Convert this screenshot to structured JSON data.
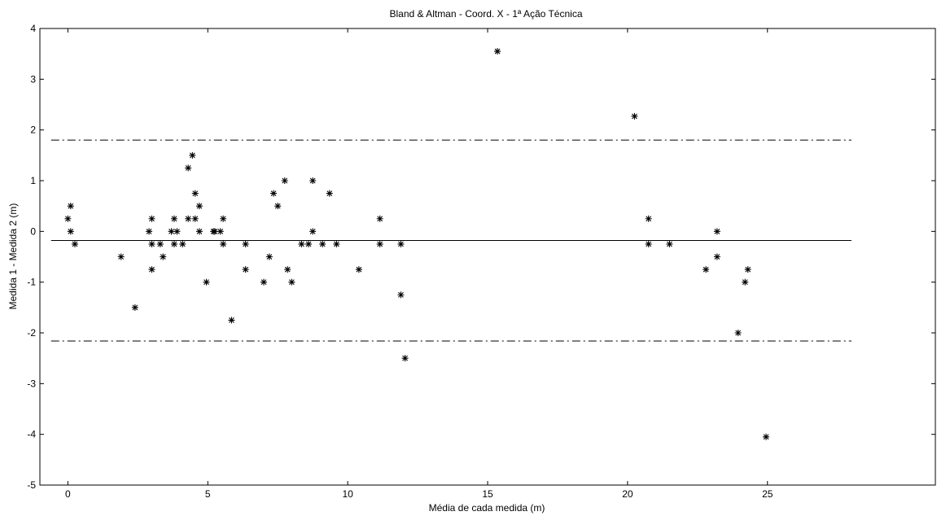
{
  "chart_data": {
    "type": "scatter",
    "title": "Bland & Altman - Coord. X - 1ª Ação Técnica",
    "xlabel": "Média de cada medida (m)",
    "ylabel": "Medida 1 - Medida 2 (m)",
    "xlim": [
      -1,
      31
    ],
    "ylim": [
      -5,
      4
    ],
    "x_ticks": [
      0,
      5,
      10,
      15,
      20,
      25
    ],
    "y_ticks": [
      -5,
      -4,
      -3,
      -2,
      -1,
      0,
      1,
      2,
      3,
      4
    ],
    "grid": false,
    "marker": "asterisk",
    "color": "#000000",
    "reference_lines": [
      {
        "y": -0.18,
        "style": "solid"
      },
      {
        "y": 1.8,
        "style": "dash-dot"
      },
      {
        "y": -2.16,
        "style": "dash-dot"
      }
    ],
    "reference_line_x_range": [
      -0.6,
      28
    ],
    "points": [
      {
        "x": 0.0,
        "y": 0.25
      },
      {
        "x": 0.1,
        "y": 0.5
      },
      {
        "x": 0.1,
        "y": 0.0
      },
      {
        "x": 0.25,
        "y": -0.25
      },
      {
        "x": 1.9,
        "y": -0.5
      },
      {
        "x": 2.4,
        "y": -1.5
      },
      {
        "x": 2.9,
        "y": 0.0
      },
      {
        "x": 3.0,
        "y": 0.25
      },
      {
        "x": 3.0,
        "y": -0.25
      },
      {
        "x": 3.0,
        "y": -0.75
      },
      {
        "x": 3.3,
        "y": -0.25
      },
      {
        "x": 3.4,
        "y": -0.5
      },
      {
        "x": 3.7,
        "y": 0.0
      },
      {
        "x": 3.8,
        "y": 0.25
      },
      {
        "x": 3.8,
        "y": -0.25
      },
      {
        "x": 3.9,
        "y": 0.0
      },
      {
        "x": 4.1,
        "y": -0.25
      },
      {
        "x": 4.3,
        "y": 1.25
      },
      {
        "x": 4.3,
        "y": 0.25
      },
      {
        "x": 4.45,
        "y": 1.5
      },
      {
        "x": 4.55,
        "y": 0.75
      },
      {
        "x": 4.55,
        "y": 0.25
      },
      {
        "x": 4.7,
        "y": 0.5
      },
      {
        "x": 4.7,
        "y": 0.0
      },
      {
        "x": 4.95,
        "y": -1.0
      },
      {
        "x": 5.2,
        "y": 0.0
      },
      {
        "x": 5.25,
        "y": 0.0
      },
      {
        "x": 5.45,
        "y": 0.0
      },
      {
        "x": 5.55,
        "y": 0.25
      },
      {
        "x": 5.55,
        "y": -0.25
      },
      {
        "x": 5.85,
        "y": -1.75
      },
      {
        "x": 6.35,
        "y": -0.25
      },
      {
        "x": 6.35,
        "y": -0.75
      },
      {
        "x": 7.0,
        "y": -1.0
      },
      {
        "x": 7.2,
        "y": -0.5
      },
      {
        "x": 7.35,
        "y": 0.75
      },
      {
        "x": 7.5,
        "y": 0.5
      },
      {
        "x": 7.75,
        "y": 1.0
      },
      {
        "x": 7.85,
        "y": -0.75
      },
      {
        "x": 8.0,
        "y": -1.0
      },
      {
        "x": 8.35,
        "y": -0.25
      },
      {
        "x": 8.6,
        "y": -0.25
      },
      {
        "x": 8.75,
        "y": 1.0
      },
      {
        "x": 8.75,
        "y": 0.0
      },
      {
        "x": 9.1,
        "y": -0.25
      },
      {
        "x": 9.35,
        "y": 0.75
      },
      {
        "x": 9.6,
        "y": -0.25
      },
      {
        "x": 10.4,
        "y": -0.75
      },
      {
        "x": 11.15,
        "y": 0.25
      },
      {
        "x": 11.15,
        "y": -0.25
      },
      {
        "x": 11.9,
        "y": -0.25
      },
      {
        "x": 11.9,
        "y": -1.25
      },
      {
        "x": 12.05,
        "y": -2.5
      },
      {
        "x": 15.35,
        "y": 3.55
      },
      {
        "x": 20.25,
        "y": 2.27
      },
      {
        "x": 20.75,
        "y": 0.25
      },
      {
        "x": 20.75,
        "y": -0.25
      },
      {
        "x": 21.5,
        "y": -0.25
      },
      {
        "x": 22.8,
        "y": -0.75
      },
      {
        "x": 23.2,
        "y": 0.0
      },
      {
        "x": 23.2,
        "y": -0.5
      },
      {
        "x": 23.95,
        "y": -2.0
      },
      {
        "x": 24.2,
        "y": -1.0
      },
      {
        "x": 24.3,
        "y": -0.75
      },
      {
        "x": 24.95,
        "y": -4.05
      }
    ]
  }
}
